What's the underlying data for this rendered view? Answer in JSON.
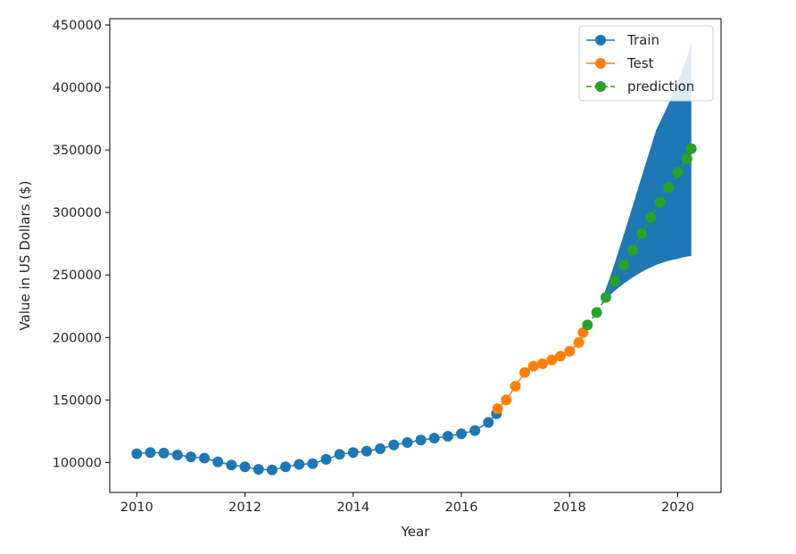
{
  "chart_data": {
    "type": "line",
    "title": "",
    "xlabel": "Year",
    "ylabel": "Value in US Dollars ($)",
    "xlim": [
      2009.5,
      2020.8
    ],
    "ylim": [
      76000,
      455000
    ],
    "x_ticks": [
      2010,
      2012,
      2014,
      2016,
      2018,
      2020
    ],
    "x_tick_labels": [
      "2010",
      "2012",
      "2014",
      "2016",
      "2018",
      "2020"
    ],
    "y_ticks": [
      100000,
      150000,
      200000,
      250000,
      300000,
      350000,
      400000,
      450000
    ],
    "y_tick_labels": [
      "100000",
      "150000",
      "200000",
      "250000",
      "300000",
      "350000",
      "400000",
      "450000"
    ],
    "grid": false,
    "legend_position": "top-right",
    "series": [
      {
        "name": "Train",
        "color": "#1f77b4",
        "marker": "circle",
        "linestyle": "solid",
        "x": [
          2010.0,
          2010.25,
          2010.5,
          2010.75,
          2011.0,
          2011.25,
          2011.5,
          2011.75,
          2012.0,
          2012.25,
          2012.5,
          2012.75,
          2013.0,
          2013.25,
          2013.5,
          2013.75,
          2014.0,
          2014.25,
          2014.5,
          2014.75,
          2015.0,
          2015.25,
          2015.5,
          2015.75,
          2016.0,
          2016.25,
          2016.5,
          2016.65
        ],
        "y": [
          107000,
          108000,
          107500,
          106000,
          104500,
          103500,
          100500,
          98000,
          96500,
          94500,
          94000,
          96500,
          98500,
          99000,
          102500,
          106500,
          108000,
          109000,
          111000,
          114000,
          116000,
          118000,
          119500,
          121000,
          123000,
          125500,
          132000,
          139000
        ]
      },
      {
        "name": "Test",
        "color": "#ff7f0e",
        "marker": "circle",
        "linestyle": "solid",
        "x": [
          2016.67,
          2016.83,
          2017.0,
          2017.17,
          2017.33,
          2017.5,
          2017.67,
          2017.83,
          2018.0,
          2018.17,
          2018.25
        ],
        "y": [
          143000,
          150000,
          161000,
          172000,
          177000,
          179000,
          182000,
          185000,
          189000,
          196000,
          204000
        ]
      },
      {
        "name": "prediction",
        "color": "#2ca02c",
        "marker": "circle",
        "linestyle": "dashed",
        "x": [
          2018.33,
          2018.5,
          2018.67,
          2018.83,
          2019.0,
          2019.17,
          2019.33,
          2019.5,
          2019.67,
          2019.83,
          2020.0,
          2020.17,
          2020.25
        ],
        "y": [
          210000,
          220000,
          232000,
          245000,
          258000,
          270000,
          283000,
          296000,
          308000,
          320000,
          332000,
          343000,
          351000
        ]
      }
    ],
    "confidence_band": {
      "color": "#1f77b4",
      "x": [
        2018.6,
        2018.8,
        2019.0,
        2019.2,
        2019.4,
        2019.6,
        2019.8,
        2020.0,
        2020.2,
        2020.25
      ],
      "upper": [
        230000,
        255000,
        282000,
        310000,
        338000,
        366000,
        384000,
        404000,
        428000,
        436000
      ],
      "lower": [
        226000,
        236000,
        243000,
        249000,
        254000,
        258000,
        261000,
        263000,
        265000,
        265000
      ]
    }
  }
}
